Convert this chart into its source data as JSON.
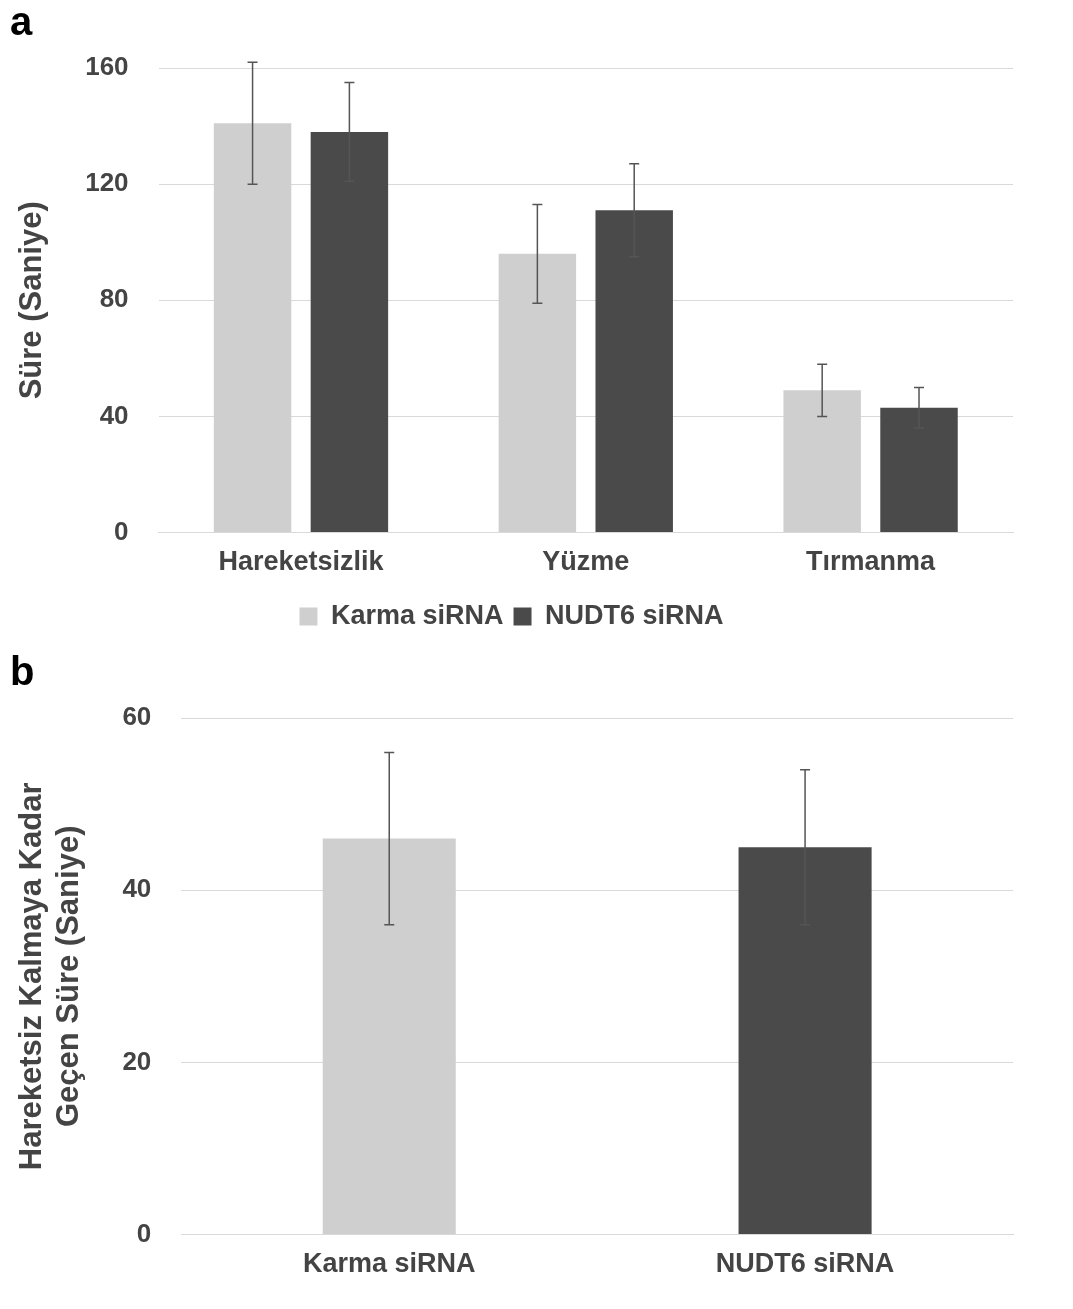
{
  "chart_data": [
    {
      "type": "bar",
      "title": "a",
      "ylabel": "Süre (Saniye)",
      "categories": [
        "Hareketsizlik",
        "Yüzme",
        "Tırmanma"
      ],
      "series": [
        {
          "name": "Karma siRNA",
          "color": "#cfcfcf",
          "values": [
            141,
            96,
            49
          ],
          "errors": [
            21,
            17,
            9
          ]
        },
        {
          "name": "NUDT6 siRNA",
          "color": "#4a4a4a",
          "values": [
            138,
            111,
            43
          ],
          "errors": [
            17,
            16,
            7
          ]
        }
      ],
      "ylim": [
        0,
        160
      ],
      "yticks": [
        0,
        40,
        80,
        120,
        160
      ],
      "grid": "y",
      "legend": "bottom"
    },
    {
      "type": "bar",
      "title": "b",
      "ylabel": "Hareketsiz Kalmaya Kadar Geçen Süre (Saniye)",
      "categories": [
        "Karma siRNA",
        "NUDT6 siRNA"
      ],
      "values": [
        46,
        45
      ],
      "errors": [
        10,
        9
      ],
      "colors": [
        "#cfcfcf",
        "#4a4a4a"
      ],
      "ylim": [
        0,
        60
      ],
      "yticks": [
        0,
        20,
        40,
        60
      ],
      "grid": "y"
    }
  ]
}
